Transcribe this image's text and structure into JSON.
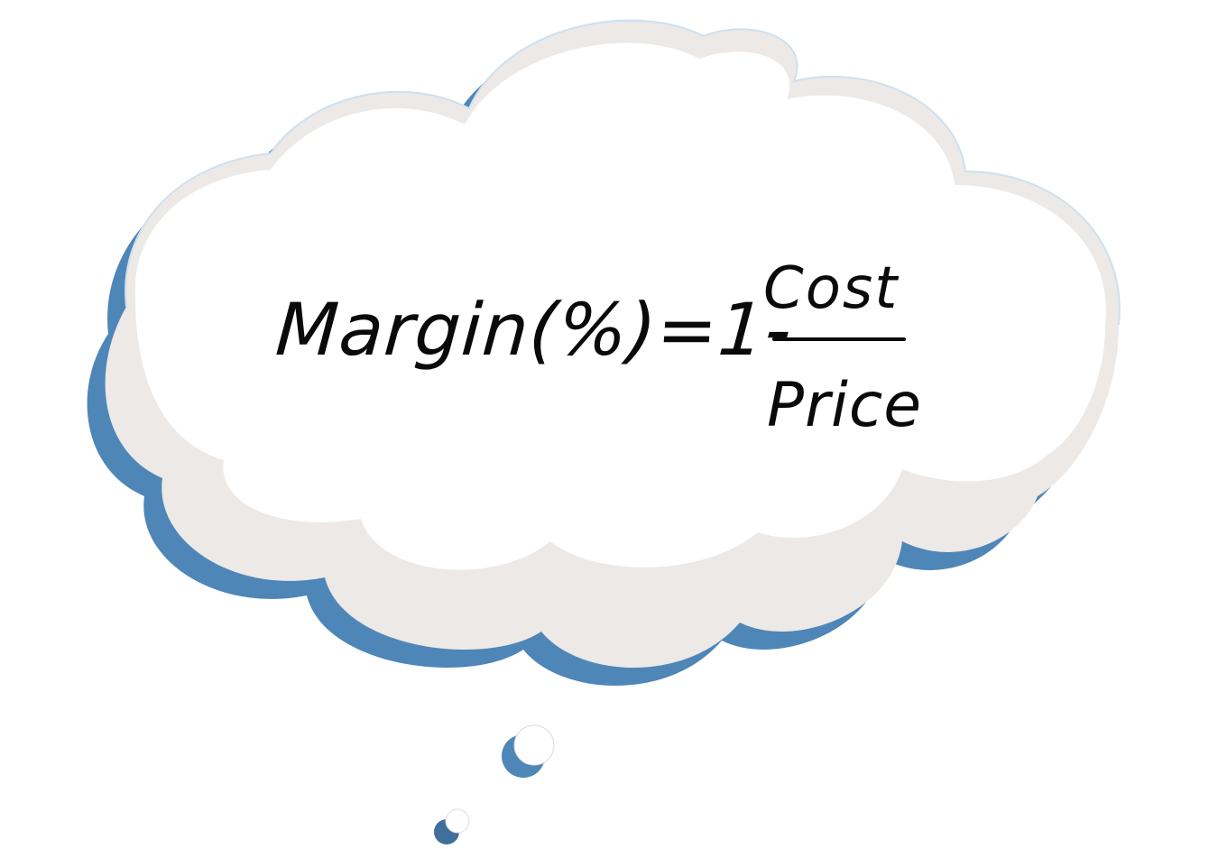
{
  "formula": {
    "lhs": "Margin(%)=1-",
    "numerator": "Cost",
    "denominator": "Price"
  },
  "colors": {
    "cloud_fill": "#ffffff",
    "cloud_shade": "#ece9e6",
    "cloud_outline": "#4e86b8",
    "ink": "#0a0a0a"
  }
}
